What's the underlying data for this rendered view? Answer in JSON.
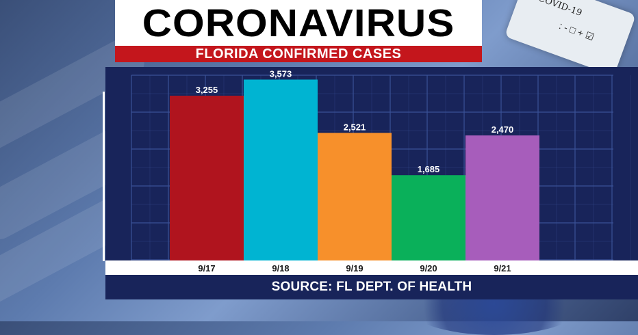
{
  "header": {
    "title": "CORONAVIRUS",
    "subtitle": "FLORIDA CONFIRMED CASES"
  },
  "background": {
    "tube_label": "COVID-19",
    "tube_marks": ": - □ + ☑"
  },
  "footer": {
    "source": "SOURCE: FL DEPT. OF HEALTH"
  },
  "colors": {
    "panel": "#18245a",
    "grid": "#3a5296",
    "title_bg": "#ffffff",
    "subtitle_bg": "#c4161c"
  },
  "chart_data": {
    "type": "bar",
    "title": "FLORIDA CONFIRMED CASES",
    "categories": [
      "9/17",
      "9/18",
      "9/19",
      "9/20",
      "9/21"
    ],
    "values": [
      3255,
      3573,
      2521,
      1685,
      2470
    ],
    "value_labels": [
      "3,255",
      "3,573",
      "2,521",
      "1,685",
      "2,470"
    ],
    "bar_colors": [
      "#b0141e",
      "#00b4d2",
      "#f7902b",
      "#0ab05a",
      "#a75dbb"
    ],
    "xlabel": "",
    "ylabel": "",
    "ylim": [
      0,
      4200
    ],
    "grid": true
  }
}
